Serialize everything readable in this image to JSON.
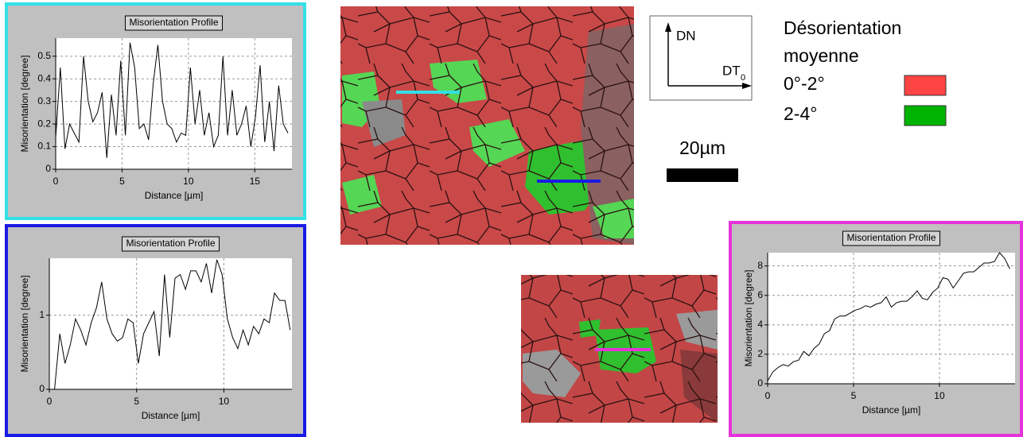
{
  "chart_data": [
    {
      "type": "line",
      "title": "Misorientation Profile",
      "x_label": "Distance [µm]",
      "y_label": "Misorientation [degree]",
      "frame_color": "#33e0e6",
      "grid": true,
      "x": [
        0,
        0.35,
        0.7,
        1.05,
        1.4,
        1.75,
        2.1,
        2.45,
        2.8,
        3.15,
        3.5,
        3.85,
        4.2,
        4.55,
        4.9,
        5.25,
        5.6,
        5.95,
        6.3,
        6.65,
        7,
        7.35,
        7.7,
        8.05,
        8.4,
        8.75,
        9.1,
        9.45,
        9.8,
        10.15,
        10.5,
        10.85,
        11.2,
        11.55,
        11.9,
        12.25,
        12.6,
        12.95,
        13.3,
        13.65,
        14,
        14.35,
        14.7,
        15.05,
        15.4,
        15.75,
        16.1,
        16.45,
        16.8,
        17.15,
        17.5
      ],
      "series": [
        {
          "color": "#000000",
          "values": [
            0.14,
            0.45,
            0.09,
            0.2,
            0.16,
            0.12,
            0.5,
            0.3,
            0.21,
            0.25,
            0.34,
            0.05,
            0.33,
            0.15,
            0.48,
            0.15,
            0.56,
            0.45,
            0.18,
            0.2,
            0.13,
            0.38,
            0.55,
            0.3,
            0.2,
            0.18,
            0.12,
            0.16,
            0.15,
            0.45,
            0.2,
            0.35,
            0.15,
            0.25,
            0.1,
            0.15,
            0.5,
            0.15,
            0.35,
            0.15,
            0.2,
            0.28,
            0.1,
            0.23,
            0.46,
            0.12,
            0.3,
            0.08,
            0.37,
            0.2,
            0.16
          ]
        }
      ],
      "xlim": [
        0,
        17.8
      ],
      "xticks": [
        0,
        5,
        10,
        15
      ],
      "ylim": [
        0,
        0.58
      ],
      "yticks": [
        0,
        0.1,
        0.2,
        0.3,
        0.4,
        0.5
      ]
    },
    {
      "type": "line",
      "title": "Misorientation Profile",
      "x_label": "Distance [µm]",
      "y_label": "Misorientation [degree]",
      "frame_color": "#1a1ae6",
      "grid": true,
      "x": [
        0.3,
        0.6,
        0.9,
        1.2,
        1.5,
        1.8,
        2.1,
        2.4,
        2.7,
        3,
        3.3,
        3.6,
        3.9,
        4.2,
        4.5,
        4.8,
        5.1,
        5.4,
        5.7,
        6,
        6.3,
        6.6,
        6.9,
        7.2,
        7.5,
        7.8,
        8.1,
        8.4,
        8.7,
        9,
        9.3,
        9.6,
        9.9,
        10.2,
        10.5,
        10.8,
        11.1,
        11.4,
        11.7,
        12,
        12.3,
        12.6,
        12.9,
        13.2,
        13.5,
        13.8
      ],
      "series": [
        {
          "color": "#000000",
          "values": [
            0,
            0.75,
            0.35,
            0.6,
            0.95,
            0.8,
            0.6,
            0.9,
            1.1,
            1.45,
            0.95,
            0.75,
            0.65,
            0.7,
            0.95,
            0.9,
            0.35,
            0.75,
            0.9,
            1.05,
            0.45,
            1.55,
            0.7,
            1.5,
            1.55,
            1.35,
            1.6,
            1.6,
            1.45,
            1.7,
            1.3,
            1.75,
            1.55,
            0.95,
            0.7,
            0.55,
            0.8,
            0.6,
            0.85,
            0.75,
            0.95,
            0.9,
            1.3,
            1.2,
            1.2,
            0.8
          ]
        }
      ],
      "xlim": [
        0,
        13.9
      ],
      "xticks": [
        0,
        5,
        10
      ],
      "ylim": [
        0,
        1.77
      ],
      "yticks": [
        0,
        1
      ]
    },
    {
      "type": "line",
      "title": "Misorientation Profile",
      "x_label": "Distance [µm]",
      "y_label": "Misorientation [degree]",
      "frame_color": "#e633d9",
      "grid": true,
      "x": [
        0,
        0.3,
        0.6,
        0.9,
        1.2,
        1.5,
        1.8,
        2.1,
        2.4,
        2.7,
        3,
        3.3,
        3.6,
        3.9,
        4.2,
        4.5,
        4.8,
        5.1,
        5.4,
        5.7,
        6,
        6.3,
        6.6,
        6.9,
        7.2,
        7.5,
        7.8,
        8.1,
        8.4,
        8.7,
        9,
        9.3,
        9.6,
        9.9,
        10.2,
        10.5,
        10.8,
        11.1,
        11.4,
        11.7,
        12,
        12.3,
        12.6,
        12.9,
        13.2,
        13.5,
        13.8,
        14.1
      ],
      "series": [
        {
          "color": "#000000",
          "values": [
            0.2,
            0.8,
            1.1,
            1.3,
            1.2,
            1.5,
            1.6,
            2.2,
            1.9,
            2.4,
            2.7,
            3.4,
            3.6,
            4.4,
            4.6,
            4.6,
            4.8,
            5.0,
            5.1,
            5.3,
            5.2,
            5.4,
            5.5,
            5.9,
            5.2,
            5.5,
            5.6,
            5.6,
            5.9,
            6.3,
            5.8,
            5.7,
            6.2,
            6.5,
            7.2,
            7.1,
            6.5,
            7.0,
            7.5,
            7.6,
            7.6,
            7.9,
            8.2,
            8.2,
            8.3,
            8.9,
            8.5,
            7.8
          ]
        }
      ],
      "xlim": [
        0,
        14.4
      ],
      "xticks": [
        0,
        5,
        10
      ],
      "ylim": [
        0,
        8.9
      ],
      "yticks": [
        0,
        2,
        4,
        6,
        8
      ]
    }
  ],
  "figure": {
    "orientation": {
      "vertical": "DN",
      "horizontal": "DT",
      "horizontal_subscript": "0"
    },
    "legend": {
      "title_line1": "Désorientation",
      "title_line2": "moyenne",
      "items": [
        {
          "label": "0°-2°",
          "color": "#ff4444"
        },
        {
          "label": "2-4°",
          "color": "#00b300"
        }
      ]
    },
    "scale_bar": {
      "label": "20µm"
    }
  }
}
